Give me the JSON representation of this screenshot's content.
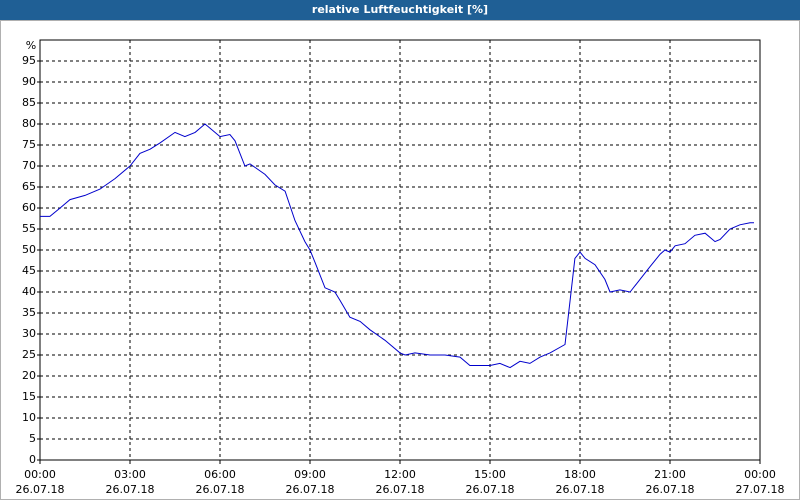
{
  "chart_data": {
    "type": "line",
    "title": "relative Luftfeuchtigkeit [%]",
    "ylabel": "%",
    "xlim": [
      0,
      24
    ],
    "ylim": [
      0,
      100
    ],
    "yticks": [
      0,
      5,
      10,
      15,
      20,
      25,
      30,
      35,
      40,
      45,
      50,
      55,
      60,
      65,
      70,
      75,
      80,
      85,
      90,
      95
    ],
    "xticks": [
      {
        "value": 0,
        "label": "00:00",
        "date": "26.07.18"
      },
      {
        "value": 3,
        "label": "03:00",
        "date": "26.07.18"
      },
      {
        "value": 6,
        "label": "06:00",
        "date": "26.07.18"
      },
      {
        "value": 9,
        "label": "09:00",
        "date": "26.07.18"
      },
      {
        "value": 12,
        "label": "12:00",
        "date": "26.07.18"
      },
      {
        "value": 15,
        "label": "15:00",
        "date": "26.07.18"
      },
      {
        "value": 18,
        "label": "18:00",
        "date": "26.07.18"
      },
      {
        "value": 21,
        "label": "21:00",
        "date": "26.07.18"
      },
      {
        "value": 24,
        "label": "00:00",
        "date": "27.07.18"
      }
    ],
    "grid": true,
    "x": [
      0,
      0.33,
      0.67,
      1,
      1.5,
      2,
      2.5,
      3,
      3.33,
      3.67,
      4,
      4.5,
      4.83,
      5.17,
      5.5,
      5.67,
      6,
      6.33,
      6.5,
      6.83,
      7,
      7.5,
      7.83,
      8.17,
      8.5,
      8.83,
      9,
      9.17,
      9.5,
      9.83,
      10,
      10.33,
      10.67,
      11,
      11.5,
      12,
      12.17,
      12.5,
      13,
      13.5,
      14,
      14.33,
      15,
      15.33,
      15.67,
      16,
      16.33,
      16.67,
      17,
      17.5,
      17.67,
      17.83,
      18,
      18.17,
      18.5,
      18.83,
      19,
      19.33,
      19.67,
      20,
      20.33,
      20.67,
      20.83,
      21,
      21.17,
      21.5,
      21.83,
      22.17,
      22.5,
      22.67,
      23,
      23.33,
      23.67,
      23.8
    ],
    "series": [
      {
        "name": "relative Luftfeuchtigkeit",
        "color": "#0000cc",
        "values": [
          58,
          58,
          60,
          62,
          63,
          64.5,
          67,
          70,
          73,
          74,
          75.5,
          78,
          77,
          78,
          80,
          79,
          77,
          77.5,
          76,
          70,
          70.5,
          68,
          65.5,
          64,
          57,
          52,
          50,
          47,
          41,
          40,
          38,
          34,
          33,
          31,
          28.5,
          25.5,
          25,
          25.5,
          25,
          25,
          24.5,
          22.5,
          22.5,
          23,
          22,
          23.5,
          23,
          24.5,
          25.5,
          27.5,
          38,
          48,
          49.5,
          48,
          46.5,
          43,
          40,
          40.5,
          40,
          43,
          46,
          49,
          50,
          49.5,
          51,
          51.5,
          53.5,
          54,
          52,
          52.5,
          55,
          56,
          56.5,
          56.5
        ]
      }
    ]
  }
}
